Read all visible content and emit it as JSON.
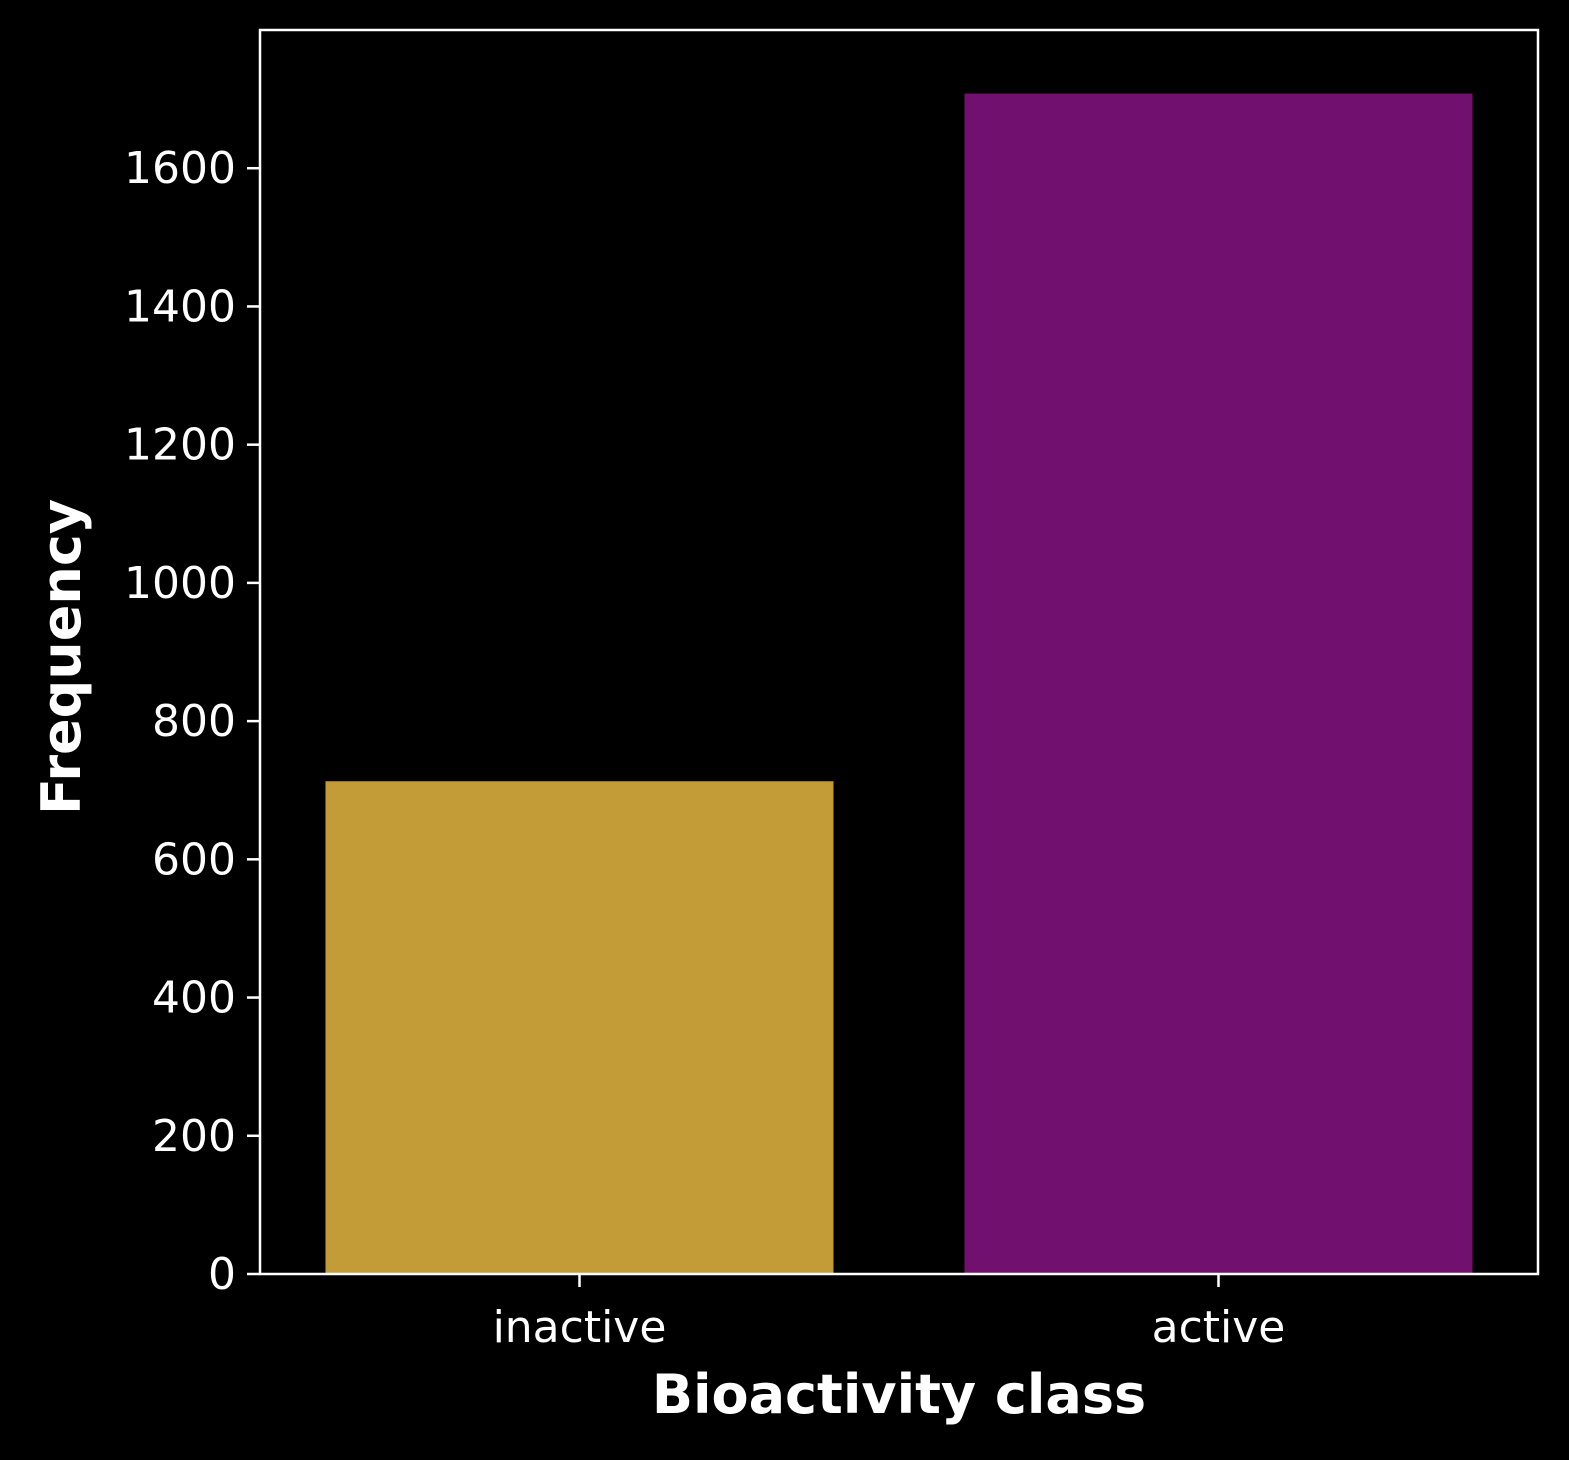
{
  "chart_data": {
    "type": "bar",
    "categories": [
      "inactive",
      "active"
    ],
    "values": [
      713,
      1708
    ],
    "colors": [
      "#c39c38",
      "#72106f"
    ],
    "xlabel": "Bioactivity class",
    "ylabel": "Frequency",
    "ylim": [
      0,
      1800
    ],
    "yticks": [
      0,
      200,
      400,
      600,
      800,
      1000,
      1200,
      1400,
      1600
    ],
    "grid": false,
    "background": "#000000",
    "foreground": "#ffffff"
  }
}
